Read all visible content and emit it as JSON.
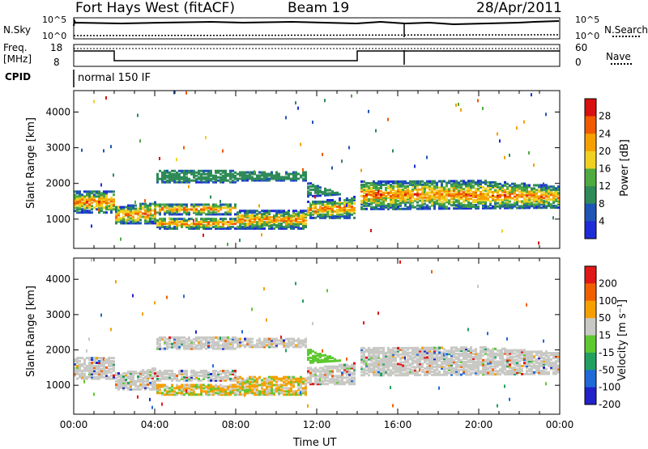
{
  "header": {
    "station": "Fort Hays West (fitACF)",
    "beam": "Beam 19",
    "date": "28/Apr/2011"
  },
  "strip": {
    "nsky_label": "N.Sky",
    "nsearch_label": "N.Search",
    "nsky_top": "10^5",
    "nsky_bottom": "10^0",
    "nsearch_top": "10^5",
    "nsearch_bottom": "10^0",
    "freq_label_line1": "Freq.",
    "freq_label_line2": "[MHz]",
    "freq_ticks": [
      "18",
      "8"
    ],
    "nave_label": "Nave",
    "nave_ticks": [
      "60",
      "0"
    ],
    "cpid_label": "CPID",
    "cpid_value": "normal 150 IF"
  },
  "chart_data": [
    {
      "type": "heatmap",
      "name": "power",
      "ylabel": "Slant Range [km]",
      "ylim": [
        180,
        4600
      ],
      "yticks": [
        "1000",
        "2000",
        "3000",
        "4000"
      ],
      "x_ticks": [
        "00:00",
        "04:00",
        "08:00",
        "12:00",
        "16:00",
        "20:00",
        "00:00"
      ],
      "colorbar": {
        "label": "Power [dB]",
        "ticks": [
          "4",
          "8",
          "12",
          "16",
          "20",
          "24",
          "28"
        ],
        "colors": [
          "#1e2cd8",
          "#1f55b5",
          "#2e8b57",
          "#4faa42",
          "#f0d020",
          "#f5a000",
          "#f05a00",
          "#d81010"
        ]
      }
    },
    {
      "type": "heatmap",
      "name": "velocity",
      "ylabel": "Slant Range [km]",
      "ylim": [
        180,
        4600
      ],
      "yticks": [
        "1000",
        "2000",
        "3000",
        "4000"
      ],
      "x_ticks": [
        "00:00",
        "04:00",
        "08:00",
        "12:00",
        "16:00",
        "20:00",
        "00:00"
      ],
      "xlabel": "Time UT",
      "colorbar": {
        "label": "Velocity [m s⁻¹]",
        "ticks": [
          "200",
          "100",
          "50",
          "15",
          "-15",
          "-50",
          "-100",
          "-200"
        ],
        "colors": [
          "#2222c8",
          "#1f6ad8",
          "#22a060",
          "#5ec830",
          "#c8c8c4",
          "#f5a000",
          "#f06000",
          "#e01818"
        ]
      }
    }
  ]
}
